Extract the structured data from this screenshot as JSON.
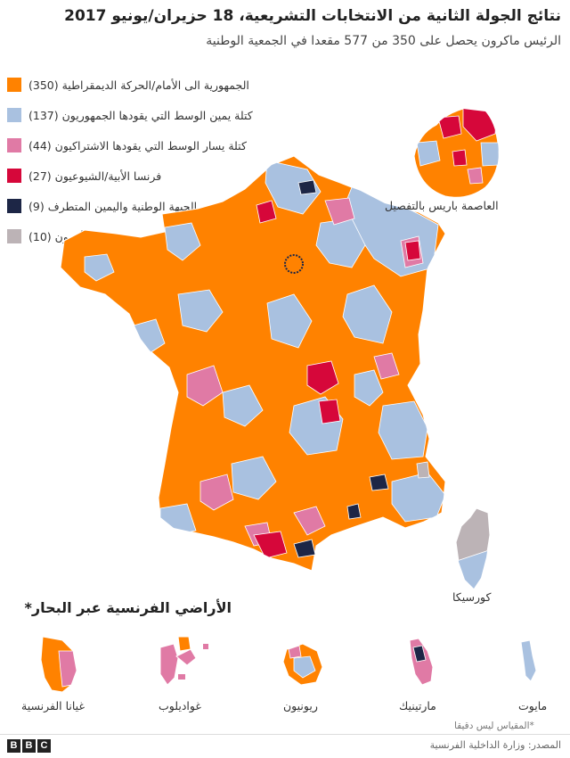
{
  "title": "نتائج الجولة الثانية من الانتخابات التشريعية، 18 حزيران/يونيو 2017",
  "subtitle": "الرئيس ماكرون يحصل على 350 من 577 مقعدا في الجمعية الوطنية",
  "colors": {
    "lrem": "#ff8200",
    "lr": "#a9c1e0",
    "ps": "#e07aa5",
    "fi": "#d6073a",
    "fn": "#1d2646",
    "other": "#bcb3b6",
    "border": "#ffffff"
  },
  "legend": [
    {
      "label": "الجمهورية الى الأمام/الحركة الديمقراطية (350)",
      "color": "#ff8200",
      "seats": 350
    },
    {
      "label": "كتلة يمين الوسط التي يقودها الجمهوريون (137)",
      "color": "#a9c1e0",
      "seats": 137
    },
    {
      "label": "كتلة يسار الوسط التي يقودها الاشتراكيون (44)",
      "color": "#e07aa5",
      "seats": 44
    },
    {
      "label": "فرنسا الأبية/الشيوعيون (27)",
      "color": "#d6073a",
      "seats": 27
    },
    {
      "label": "الجبهة الوطنية واليمين المتطرف (9)",
      "color": "#1d2646",
      "seats": 9
    },
    {
      "label": "آخرون (10)",
      "color": "#bcb3b6",
      "seats": 10
    }
  ],
  "map_labels": {
    "paris": "العاصمة باريس بالتفصيل",
    "corsica": "كورسيكا"
  },
  "overseas": {
    "title": "الأراضي الفرنسية عبر البحار*",
    "territories": [
      {
        "name": "غيانا الفرنسية",
        "icon": "guiana-shape"
      },
      {
        "name": "غواديلوب",
        "icon": "guadeloupe-shape"
      },
      {
        "name": "ريونيون",
        "icon": "reunion-shape"
      },
      {
        "name": "مارتينيك",
        "icon": "martinique-shape"
      },
      {
        "name": "مايوت",
        "icon": "mayotte-shape"
      }
    ],
    "note": "*المقياس ليس دقيقا"
  },
  "footer": {
    "brand": [
      "B",
      "B",
      "C"
    ],
    "source": "المصدر: وزارة الداخلية الفرنسية"
  }
}
